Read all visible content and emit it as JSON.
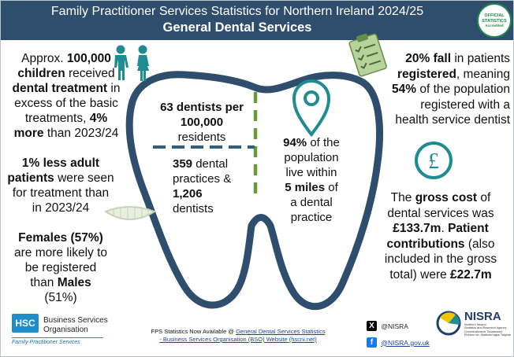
{
  "header": {
    "title": "Family Practitioner Services Statistics for Northern Ireland 2024/25",
    "subtitle": "General Dental Services",
    "badge_l1": "OFFICIAL",
    "badge_l2": "STATISTICS",
    "badge_l3": "Accredited"
  },
  "children": {
    "l1a": "Approx. ",
    "l1b": "100,000",
    "l2": "children",
    "l2b": " received",
    "l3": "dental treatment",
    "l3b": " in",
    "l4": "excess of the basic",
    "l5a": "treatments, ",
    "l5b": "4%",
    "l6a": "more",
    "l6b": " than 2023/24"
  },
  "adults": {
    "l1a": "1% less adult",
    "l2a": "patients",
    "l2b": " were seen",
    "l3": "for treatment than",
    "l4": "in 2023/24"
  },
  "gender": {
    "l1": "Females (57%)",
    "l2": "are more likely to",
    "l3": "be registered",
    "l4a": "than ",
    "l4b": "Males",
    "l5": "(51%)"
  },
  "tooth": {
    "dentists_l1": "63 dentists per",
    "dentists_l2": "100,000",
    "dentists_l3": "residents",
    "practices_l1a": "359",
    "practices_l1b": " dental",
    "practices_l2": "practices &",
    "practices_l3": "1,206",
    "practices_l4": "dentists",
    "distance_l1a": "94%",
    "distance_l1b": " of the",
    "distance_l2": "population",
    "distance_l3": "live within",
    "distance_l4a": "5 miles",
    "distance_l4b": " of",
    "distance_l5": "a dental",
    "distance_l6": "practice"
  },
  "registration": {
    "l1a": "20% fall",
    "l1b": " in patients",
    "l2a": "registered",
    "l2b": ", meaning",
    "l3a": "54%",
    "l3b": " of the population",
    "l4": "registered with a",
    "l5": "health service dentist"
  },
  "cost": {
    "l1a": "The ",
    "l1b": "gross cost",
    "l1c": " of",
    "l2": "dental services was",
    "l3a": "£133.7m",
    "l3b": ". ",
    "l3c": "Patient",
    "l4a": "contributions",
    "l4b": " (also",
    "l5": "included in the gross",
    "l6a": "total) were ",
    "l6b": "£22.7m"
  },
  "footer": {
    "bso_logo": "HSC",
    "bso_l1": "Business Services",
    "bso_l2": "Organisation",
    "bso_tag": "Family Practitioner Services",
    "center_prefix": "FPS Statistics Now Available @ ",
    "link_l1": "General Dental Services",
    "link_l2": "Statistics - Business Services Organisation (BSO) Website",
    "link_l3": "(hscni.net)",
    "x_handle": "@NISRA",
    "fb_handle": "@NISRA.gov.uk",
    "nisra_name": "NISRA",
    "nisra_sub1": "Northern Ireland",
    "nisra_sub2": "Statistics and Research Agency",
    "nisra_sub3": "Gníomhaireacht Thuaisceart",
    "nisra_sub4": "Éireann um Staitisticí agus Taighde"
  },
  "colors": {
    "banner": "#2f4e6e",
    "tooth_outline": "#2f4e6e",
    "teal": "#1f8c8f",
    "green": "#6a9a3a",
    "dash_blue": "#2f5e7e"
  },
  "icons": [
    "child-boy-icon",
    "child-girl-icon",
    "clipboard-checklist-icon",
    "location-pin-icon",
    "pound-coin-icon",
    "smile-teeth-icon"
  ]
}
